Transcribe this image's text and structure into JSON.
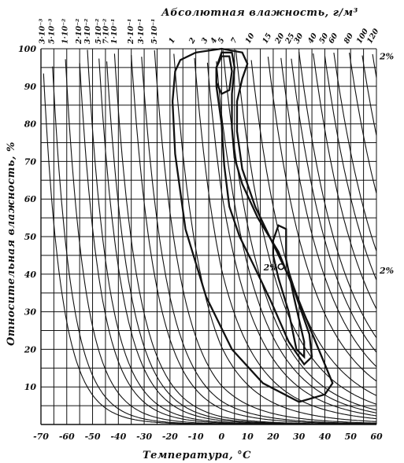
{
  "chart_data": {
    "type": "line",
    "title": "Абсолютная влажность, г/м³",
    "xlabel": "Температура, °C",
    "ylabel": "Относительная влажность, %",
    "xlim": [
      -70,
      60
    ],
    "ylim": [
      0,
      100
    ],
    "x_ticks": [
      -70,
      -60,
      -50,
      -40,
      -30,
      -20,
      -10,
      0,
      10,
      20,
      30,
      40,
      50,
      60
    ],
    "y_ticks": [
      10,
      20,
      30,
      40,
      50,
      60,
      70,
      80,
      90,
      100
    ],
    "grid": true,
    "abs_humidity_labels": [
      "3·10⁻³",
      "5·10⁻³",
      "1·10⁻²",
      "2·10⁻²",
      "3·10⁻²",
      "5·10⁻²",
      "7·10⁻²",
      "1·10⁻¹",
      "2·10⁻¹",
      "3·10⁻¹",
      "5·10⁻¹",
      "1",
      "2",
      "3",
      "4",
      "5",
      "7",
      "10",
      "15",
      "20",
      "25",
      "30",
      "40",
      "50",
      "60",
      "80",
      "100",
      "120"
    ],
    "abs_humidity_values": [
      0.003,
      0.005,
      0.01,
      0.02,
      0.03,
      0.05,
      0.07,
      0.1,
      0.2,
      0.3,
      0.5,
      1,
      2,
      3,
      4,
      5,
      7,
      10,
      15,
      20,
      25,
      30,
      40,
      50,
      60,
      80,
      100,
      120
    ],
    "contours": [
      {
        "label": "2%",
        "points": [
          [
            -18,
            94
          ],
          [
            -16,
            97
          ],
          [
            -10,
            99
          ],
          [
            0,
            100
          ],
          [
            8,
            99
          ],
          [
            10,
            96
          ],
          [
            8,
            92
          ],
          [
            6,
            86
          ],
          [
            6,
            78
          ],
          [
            8,
            68
          ],
          [
            13,
            58
          ],
          [
            20,
            48
          ],
          [
            27,
            38
          ],
          [
            34,
            26
          ],
          [
            40,
            16
          ],
          [
            43,
            11
          ],
          [
            40,
            8
          ],
          [
            30,
            6
          ],
          [
            16,
            11
          ],
          [
            4,
            20
          ],
          [
            -6,
            34
          ],
          [
            -14,
            52
          ],
          [
            -18,
            72
          ],
          [
            -19,
            86
          ],
          [
            -18,
            94
          ]
        ]
      },
      {
        "label": "",
        "points": [
          [
            -2,
            95
          ],
          [
            0,
            99
          ],
          [
            4,
            99
          ],
          [
            5,
            95
          ],
          [
            4,
            88
          ],
          [
            4,
            79
          ],
          [
            5,
            71
          ],
          [
            8,
            64
          ],
          [
            14,
            55
          ],
          [
            22,
            46
          ],
          [
            28,
            36
          ],
          [
            34,
            24
          ],
          [
            35,
            18
          ],
          [
            32,
            16
          ],
          [
            26,
            22
          ],
          [
            19,
            33
          ],
          [
            12,
            43
          ],
          [
            7,
            50
          ],
          [
            3,
            58
          ],
          [
            1,
            69
          ],
          [
            0,
            80
          ],
          [
            -2,
            90
          ],
          [
            -2,
            95
          ]
        ]
      },
      {
        "label": "",
        "points": [
          [
            -2,
            95
          ],
          [
            0,
            98
          ],
          [
            3,
            98
          ],
          [
            4,
            94
          ],
          [
            3,
            89
          ],
          [
            0,
            88
          ],
          [
            -2,
            91
          ],
          [
            -2,
            95
          ]
        ]
      },
      {
        "label": "",
        "points": [
          [
            20,
            49
          ],
          [
            22,
            53
          ],
          [
            25,
            52
          ],
          [
            25,
            44
          ],
          [
            28,
            34
          ],
          [
            32,
            22
          ],
          [
            32,
            18
          ],
          [
            29,
            20
          ],
          [
            26,
            30
          ],
          [
            22,
            39
          ],
          [
            20,
            45
          ],
          [
            20,
            49
          ]
        ]
      }
    ],
    "annotations": [
      {
        "text": "2%",
        "x": 19,
        "y": 42
      },
      {
        "text": "2%",
        "position": "right",
        "y": 98
      },
      {
        "text": "2%",
        "position": "right",
        "y": 41
      }
    ]
  }
}
